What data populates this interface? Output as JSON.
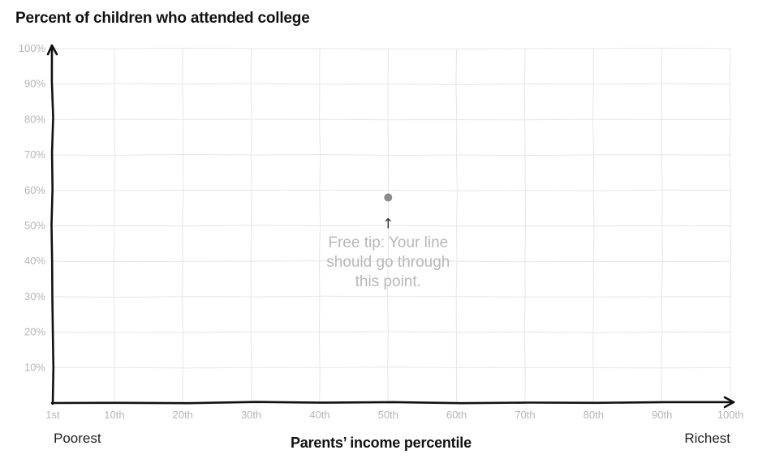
{
  "chart_data": {
    "type": "line",
    "title": "Percent of children who attended college",
    "xlabel": "Parents’ income percentile",
    "x_ticks": [
      {
        "value": 1,
        "label": "1st"
      },
      {
        "value": 10,
        "label": "10th"
      },
      {
        "value": 20,
        "label": "20th"
      },
      {
        "value": 30,
        "label": "30th"
      },
      {
        "value": 40,
        "label": "40th"
      },
      {
        "value": 50,
        "label": "50th"
      },
      {
        "value": 60,
        "label": "60th"
      },
      {
        "value": 70,
        "label": "70th"
      },
      {
        "value": 80,
        "label": "80th"
      },
      {
        "value": 90,
        "label": "90th"
      },
      {
        "value": 100,
        "label": "100th"
      }
    ],
    "y_ticks": [
      {
        "value": 10,
        "label": "10%"
      },
      {
        "value": 20,
        "label": "20%"
      },
      {
        "value": 30,
        "label": "30%"
      },
      {
        "value": 40,
        "label": "40%"
      },
      {
        "value": 50,
        "label": "50%"
      },
      {
        "value": 60,
        "label": "60%"
      },
      {
        "value": 70,
        "label": "70%"
      },
      {
        "value": 80,
        "label": "80%"
      },
      {
        "value": 90,
        "label": "90%"
      },
      {
        "value": 100,
        "label": "100%"
      }
    ],
    "xlim": [
      1,
      100
    ],
    "ylim": [
      0,
      100
    ],
    "grid": true,
    "x_end_labels": {
      "left": "Poorest",
      "right": "Richest"
    },
    "hint_point": {
      "x": 50,
      "y": 58
    },
    "annotation": {
      "arrow": "↑",
      "lines": [
        "Free tip: Your line",
        "should go through",
        "this point."
      ]
    },
    "series": []
  },
  "colors": {
    "axis": "#111111",
    "grid": "#e6e6e6",
    "tick_text": "#b5b5b5",
    "hint_point": "#8c8c8c",
    "annotation_text": "#b8b8b8"
  }
}
